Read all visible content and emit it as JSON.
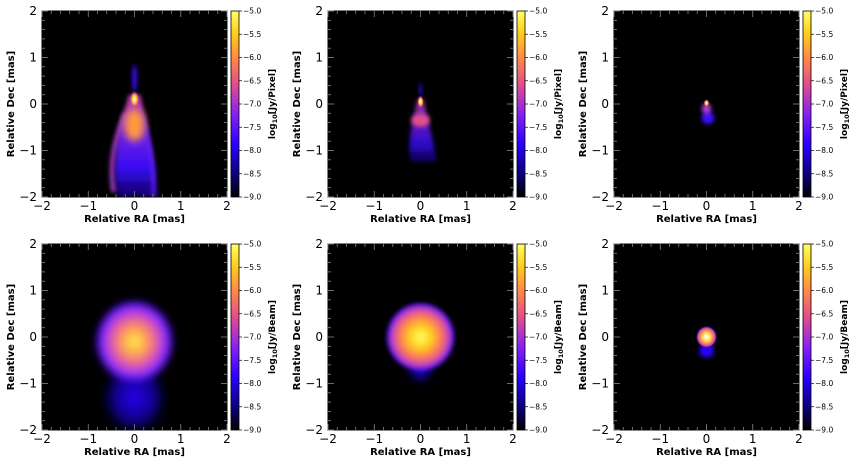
{
  "figure": {
    "layout": "2x3 grid of images",
    "colormap": "gnuplot2",
    "colors": {
      "background": "#000000",
      "frame": "#000000"
    }
  },
  "chart_data": [
    {
      "type": "heatmap",
      "row": 0,
      "col": 0,
      "xlabel": "Relative RA [mas]",
      "ylabel": "Relative Dec [mas]",
      "xlim": [
        -2,
        2
      ],
      "ylim": [
        -2,
        2
      ],
      "xticks": [
        "−2",
        "−1",
        "0",
        "1",
        "2"
      ],
      "yticks": [
        "−2",
        "−1",
        "0",
        "1",
        "2"
      ],
      "colorbar": {
        "label_prefix": "log",
        "label_sub": "10",
        "label_suffix": "[Jy/Pixel]",
        "range": [
          -9.0,
          -5.0
        ],
        "ticks": [
          "−5.0",
          "−5.5",
          "−6.0",
          "−6.5",
          "−7.0",
          "−7.5",
          "−8.0",
          "−8.5",
          "−9.0"
        ]
      },
      "structure": "narrow jet: bright core at (0, 0.1) mas with an extended limb-brightened flow to Dec ≈ −2 mas"
    },
    {
      "type": "heatmap",
      "row": 0,
      "col": 1,
      "xlabel": "Relative RA [mas]",
      "ylabel": "Relative Dec [mas]",
      "xlim": [
        -2,
        2
      ],
      "ylim": [
        -2,
        2
      ],
      "xticks": [
        "−2",
        "−1",
        "0",
        "1",
        "2"
      ],
      "yticks": [
        "−2",
        "−1",
        "0",
        "1",
        "2"
      ],
      "colorbar": {
        "label_prefix": "log",
        "label_sub": "10",
        "label_suffix": "[Jy/Pixel]",
        "range": [
          -9.0,
          -5.0
        ],
        "ticks": [
          "−5.0",
          "−5.5",
          "−6.0",
          "−6.5",
          "−7.0",
          "−7.5",
          "−8.0",
          "−8.5",
          "−9.0"
        ]
      },
      "structure": "compact core at (0, 0.1) mas with faint jet to Dec ≈ −1.2 mas"
    },
    {
      "type": "heatmap",
      "row": 0,
      "col": 2,
      "xlabel": "Relative RA [mas]",
      "ylabel": "Relative Dec [mas]",
      "xlim": [
        -2,
        2
      ],
      "ylim": [
        -2,
        2
      ],
      "xticks": [
        "−2",
        "−1",
        "0",
        "1",
        "2"
      ],
      "yticks": [
        "−2",
        "−1",
        "0",
        "1",
        "2"
      ],
      "colorbar": {
        "label_prefix": "log",
        "label_sub": "10",
        "label_suffix": "[Jy/Pixel]",
        "range": [
          -9.0,
          -5.0
        ],
        "ticks": [
          "−5.0",
          "−5.5",
          "−6.0",
          "−6.5",
          "−7.0",
          "−7.5",
          "−8.0",
          "−8.5",
          "−9.0"
        ]
      },
      "structure": "very compact core at (0, 0) mas with short emission to Dec ≈ −0.4 mas"
    },
    {
      "type": "heatmap",
      "row": 1,
      "col": 0,
      "xlabel": "Relative RA [mas]",
      "ylabel": "Relative Dec [mas]",
      "xlim": [
        -2,
        2
      ],
      "ylim": [
        -2,
        2
      ],
      "xticks": [
        "−2",
        "−1",
        "0",
        "1",
        "2"
      ],
      "yticks": [
        "−2",
        "−1",
        "0",
        "1",
        "2"
      ],
      "colorbar": {
        "label_prefix": "log",
        "label_sub": "10",
        "label_suffix": "[Jy/Beam]",
        "range": [
          -9.0,
          -5.0
        ],
        "ticks": [
          "−5.0",
          "−5.5",
          "−6.0",
          "−6.5",
          "−7.0",
          "−7.5",
          "−8.0",
          "−8.5",
          "−9.0"
        ]
      },
      "structure": "broad convolved blob peaked near (0, -0.1) mas, radius ≈ 0.8 mas, with extension to Dec ≈ −2 mas"
    },
    {
      "type": "heatmap",
      "row": 1,
      "col": 1,
      "xlabel": "Relative RA [mas]",
      "ylabel": "Relative Dec [mas]",
      "xlim": [
        -2,
        2
      ],
      "ylim": [
        -2,
        2
      ],
      "xticks": [
        "−2",
        "−1",
        "0",
        "1",
        "2"
      ],
      "yticks": [
        "−2",
        "−1",
        "0",
        "1",
        "2"
      ],
      "colorbar": {
        "label_prefix": "log",
        "label_sub": "10",
        "label_suffix": "[Jy/Beam]",
        "range": [
          -9.0,
          -5.0
        ],
        "ticks": [
          "−5.0",
          "−5.5",
          "−6.0",
          "−6.5",
          "−7.0",
          "−7.5",
          "−8.0",
          "−8.5",
          "−9.0"
        ]
      },
      "structure": "round convolved blob centered at (0, 0) mas, radius ≈ 0.7 mas"
    },
    {
      "type": "heatmap",
      "row": 1,
      "col": 2,
      "xlabel": "Relative RA [mas]",
      "ylabel": "Relative Dec [mas]",
      "xlim": [
        -2,
        2
      ],
      "ylim": [
        -2,
        2
      ],
      "xticks": [
        "−2",
        "−1",
        "0",
        "1",
        "2"
      ],
      "yticks": [
        "−2",
        "−1",
        "0",
        "1",
        "2"
      ],
      "colorbar": {
        "label_prefix": "log",
        "label_sub": "10",
        "label_suffix": "[Jy/Beam]",
        "range": [
          -9.0,
          -5.0
        ],
        "ticks": [
          "−5.0",
          "−5.5",
          "−6.0",
          "−6.5",
          "−7.0",
          "−7.5",
          "−8.0",
          "−8.5",
          "−9.0"
        ]
      },
      "structure": "small compact blob at (0, 0) mas, radius ≈ 0.2 mas"
    }
  ]
}
